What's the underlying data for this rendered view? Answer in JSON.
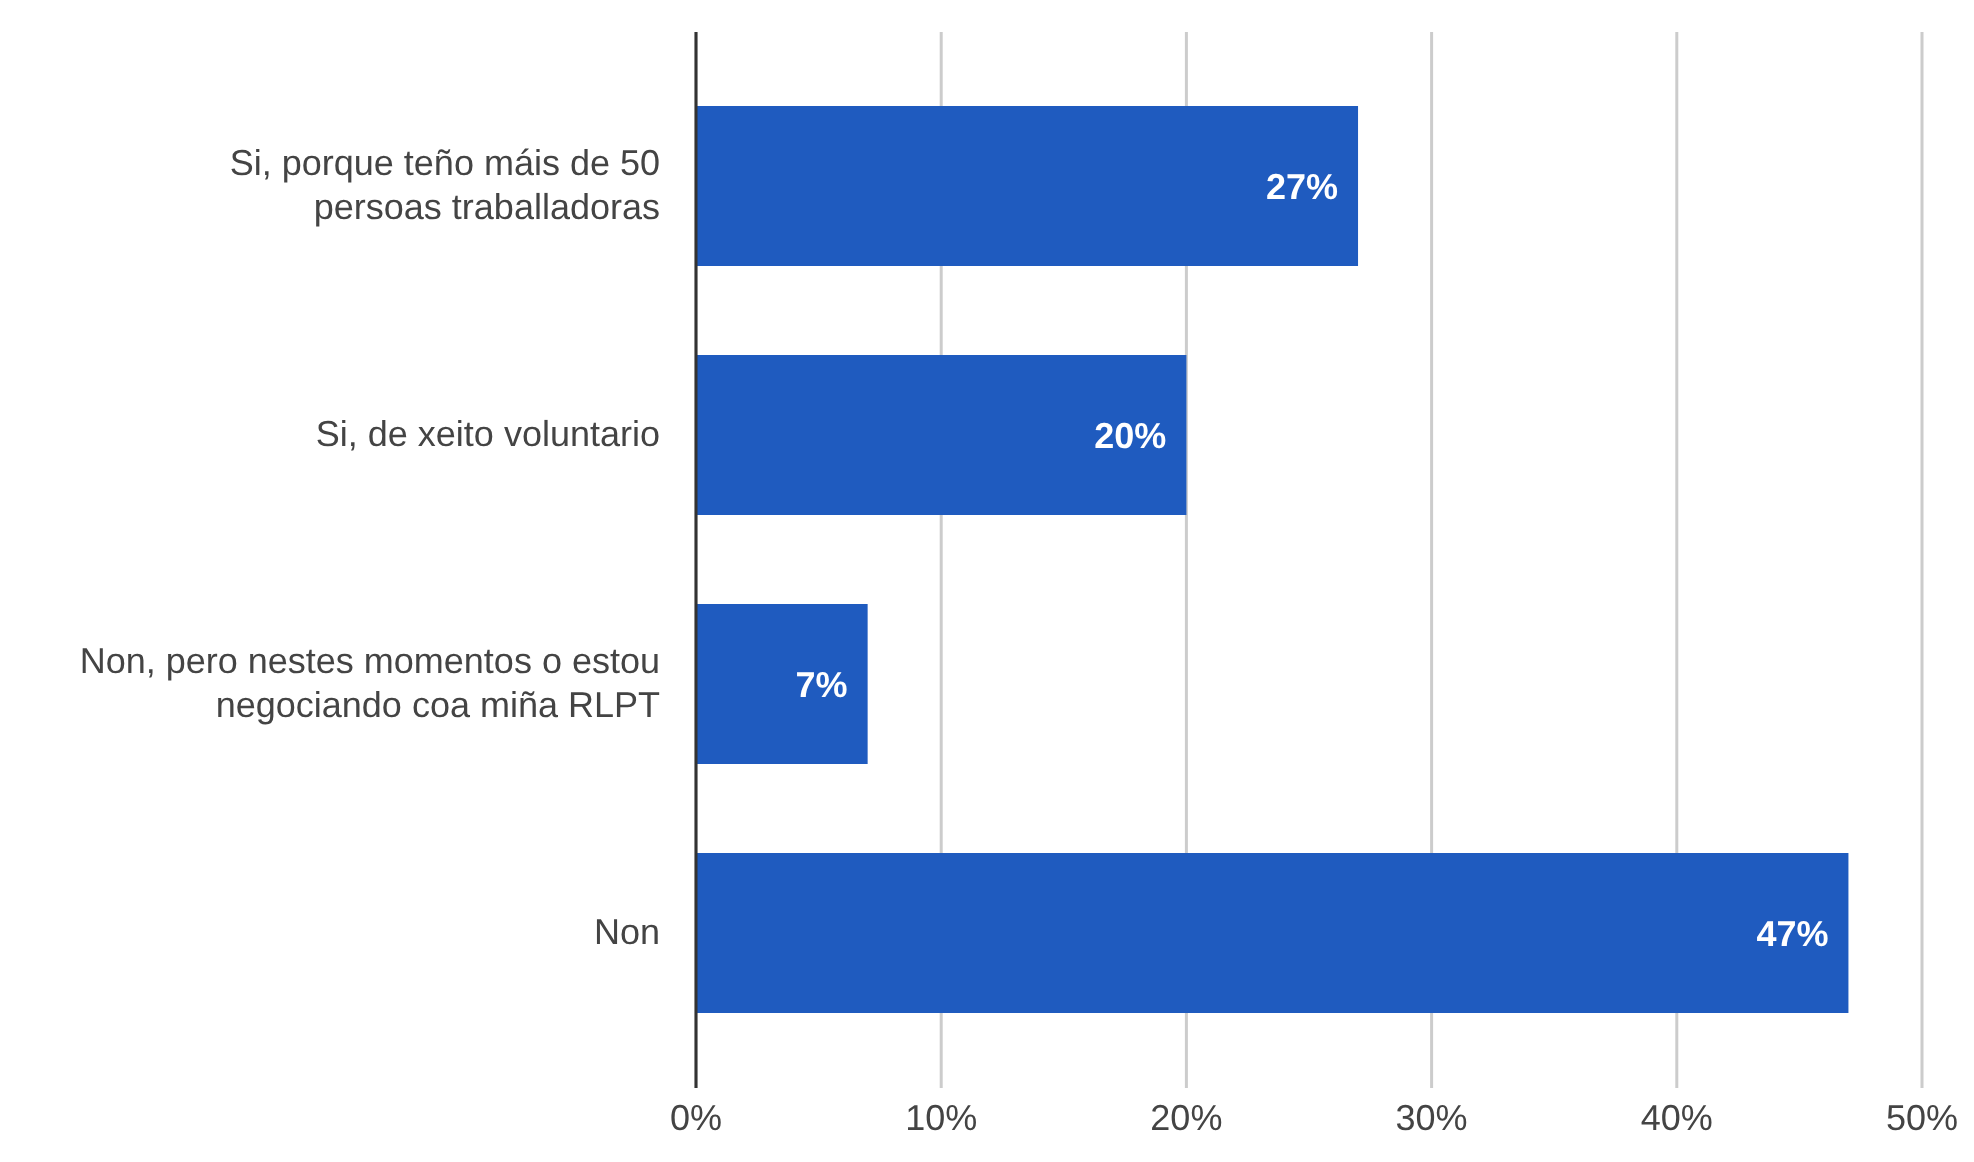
{
  "chart_data": {
    "type": "bar",
    "orientation": "horizontal",
    "categories": [
      "Si, porque teño máis de 50 persoas traballadoras",
      "Si, de xeito voluntario",
      "Non, pero nestes momentos o estou negociando coa miña RLPT",
      "Non"
    ],
    "values": [
      27,
      20,
      7,
      47
    ],
    "color": "#1f5bbf",
    "value_labels": [
      "27%",
      "20%",
      "7%",
      "47%"
    ],
    "xlim": [
      0,
      50
    ],
    "xticks": [
      {
        "value": 0,
        "label": "0%"
      },
      {
        "value": 10,
        "label": "10%"
      },
      {
        "value": 20,
        "label": "20%"
      },
      {
        "value": 30,
        "label": "30%"
      },
      {
        "value": 40,
        "label": "40%"
      },
      {
        "value": 50,
        "label": "50%"
      }
    ],
    "grid": "x"
  }
}
